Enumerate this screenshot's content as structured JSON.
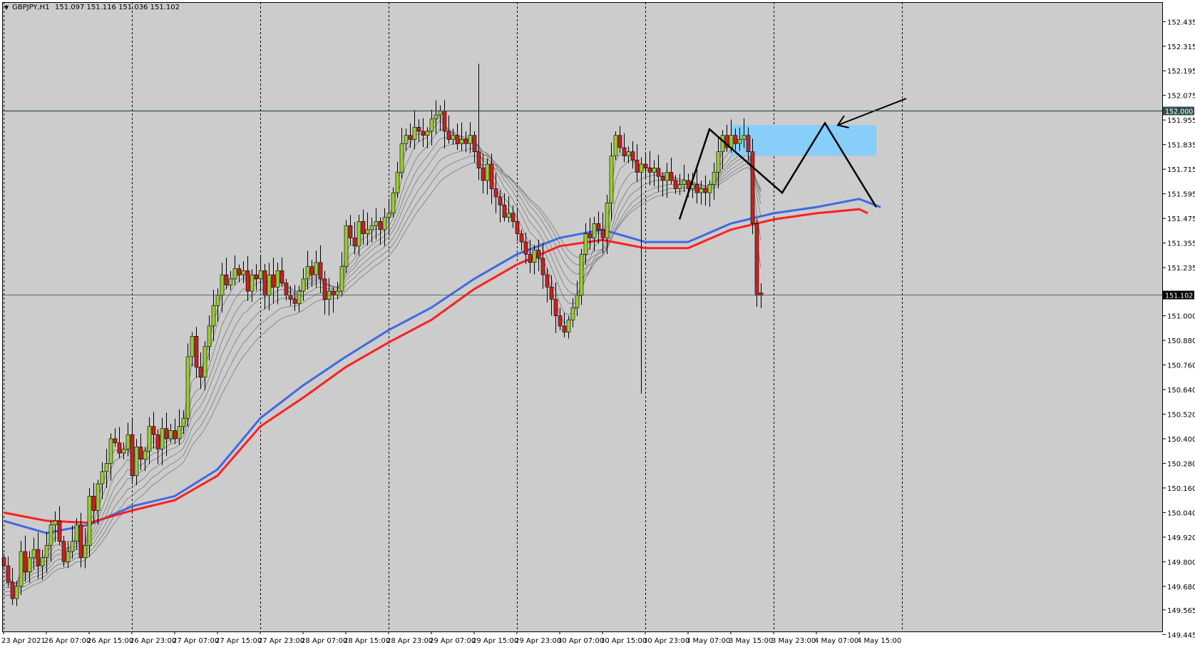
{
  "header": {
    "symbol_timeframe": "GBPJPY,H1",
    "ohlc": "151.097 151.116 151.036 151.102"
  },
  "colors": {
    "background": "#ffffff",
    "plot": "#cccccc",
    "bull": "#99cc33",
    "bear": "#cc2020",
    "wick": "#000000",
    "ema_blue": "#4169e1",
    "ema_red": "#ff2020",
    "ribbon": "#7a7a7a",
    "zone": "#87cefa",
    "hline": "#2f4f4f",
    "grid": "#000000"
  },
  "chart_data": {
    "type": "candlestick",
    "symbol": "GBPJPY",
    "timeframe": "H1",
    "ylim": [
      149.46,
      152.53
    ],
    "y_ticks": [
      "152.435",
      "152.315",
      "152.195",
      "152.075",
      "151.955",
      "151.835",
      "151.715",
      "151.595",
      "151.475",
      "151.355",
      "151.235",
      "151.000",
      "150.880",
      "150.760",
      "150.640",
      "150.520",
      "150.400",
      "150.280",
      "150.160",
      "150.040",
      "149.920",
      "149.800",
      "149.680",
      "149.565",
      "149.445"
    ],
    "x_ticks": [
      {
        "bar": 0,
        "label": "23 Apr 2021"
      },
      {
        "bar": 10,
        "label": "26 Apr 07:00"
      },
      {
        "bar": 20,
        "label": "26 Apr 15:00"
      },
      {
        "bar": 30,
        "label": "26 Apr 23:00"
      },
      {
        "bar": 40,
        "label": "27 Apr 07:00"
      },
      {
        "bar": 50,
        "label": "27 Apr 15:00"
      },
      {
        "bar": 60,
        "label": "27 Apr 23:00"
      },
      {
        "bar": 70,
        "label": "28 Apr 07:00"
      },
      {
        "bar": 80,
        "label": "28 Apr 15:00"
      },
      {
        "bar": 90,
        "label": "28 Apr 23:00"
      },
      {
        "bar": 100,
        "label": "29 Apr 07:00"
      },
      {
        "bar": 110,
        "label": "29 Apr 15:00"
      },
      {
        "bar": 120,
        "label": "29 Apr 23:00"
      },
      {
        "bar": 130,
        "label": "30 Apr 07:00"
      },
      {
        "bar": 140,
        "label": "30 Apr 15:00"
      },
      {
        "bar": 150,
        "label": "30 Apr 23:00"
      },
      {
        "bar": 160,
        "label": "3 May 07:00"
      },
      {
        "bar": 170,
        "label": "3 May 15:00"
      },
      {
        "bar": 180,
        "label": "3 May 23:00"
      },
      {
        "bar": 190,
        "label": "4 May 07:00"
      },
      {
        "bar": 200,
        "label": "4 May 15:00"
      }
    ],
    "vgrid_bars": [
      0,
      30,
      60,
      90,
      120,
      150,
      180,
      210
    ],
    "closes": [
      149.78,
      149.7,
      149.62,
      149.68,
      149.85,
      149.75,
      149.82,
      149.86,
      149.78,
      149.82,
      149.88,
      149.98,
      150.0,
      149.9,
      149.8,
      149.85,
      149.9,
      149.98,
      149.82,
      149.88,
      150.12,
      150.05,
      150.18,
      150.24,
      150.28,
      150.4,
      150.38,
      150.33,
      150.35,
      150.42,
      150.22,
      150.36,
      150.3,
      150.34,
      150.46,
      150.42,
      150.35,
      150.45,
      150.4,
      150.44,
      150.4,
      150.46,
      150.5,
      150.8,
      150.9,
      150.75,
      150.7,
      150.85,
      150.95,
      151.05,
      151.1,
      151.2,
      151.15,
      151.18,
      151.23,
      151.2,
      151.22,
      151.12,
      151.2,
      151.18,
      151.22,
      151.1,
      151.2,
      151.14,
      151.22,
      151.16,
      151.1,
      151.08,
      151.06,
      151.12,
      151.18,
      151.24,
      151.2,
      151.26,
      151.18,
      151.08,
      151.12,
      151.1,
      151.12,
      151.24,
      151.44,
      151.38,
      151.34,
      151.46,
      151.4,
      151.42,
      151.44,
      151.46,
      151.42,
      151.48,
      151.5,
      151.6,
      151.7,
      151.84,
      151.88,
      151.86,
      151.92,
      151.9,
      151.88,
      151.9,
      151.96,
      151.98,
      152.0,
      151.9,
      151.86,
      151.88,
      151.84,
      151.86,
      151.84,
      151.88,
      151.8,
      151.72,
      151.66,
      151.74,
      151.62,
      151.58,
      151.54,
      151.48,
      151.5,
      151.46,
      151.4,
      151.36,
      151.3,
      151.26,
      151.32,
      151.28,
      151.2,
      151.14,
      151.08,
      151.0,
      150.95,
      150.92,
      150.98,
      151.04,
      151.1,
      151.3,
      151.4,
      151.38,
      151.45,
      151.42,
      151.38,
      151.55,
      151.78,
      151.88,
      151.82,
      151.78,
      151.8,
      151.76,
      151.7,
      151.74,
      151.72,
      151.7,
      151.72,
      151.68,
      151.66,
      151.7,
      151.66,
      151.62,
      151.64,
      151.66,
      151.62,
      151.64,
      151.6,
      151.62,
      151.6,
      151.64,
      151.7,
      151.8,
      151.88,
      151.82,
      151.88,
      151.84,
      151.86,
      151.88,
      151.8,
      151.45,
      151.1,
      151.1
    ],
    "ema_blue": [
      [
        0,
        150.0
      ],
      [
        10,
        149.94
      ],
      [
        20,
        149.98
      ],
      [
        30,
        150.07
      ],
      [
        40,
        150.12
      ],
      [
        50,
        150.25
      ],
      [
        60,
        150.5
      ],
      [
        70,
        150.66
      ],
      [
        80,
        150.8
      ],
      [
        90,
        150.93
      ],
      [
        100,
        151.04
      ],
      [
        110,
        151.18
      ],
      [
        120,
        151.3
      ],
      [
        130,
        151.38
      ],
      [
        140,
        151.42
      ],
      [
        150,
        151.36
      ],
      [
        160,
        151.36
      ],
      [
        170,
        151.45
      ],
      [
        180,
        151.5
      ],
      [
        190,
        151.53
      ],
      [
        200,
        151.57
      ],
      [
        205,
        151.53
      ]
    ],
    "ema_red": [
      [
        0,
        150.04
      ],
      [
        10,
        150.0
      ],
      [
        20,
        149.99
      ],
      [
        30,
        150.05
      ],
      [
        40,
        150.1
      ],
      [
        50,
        150.22
      ],
      [
        60,
        150.46
      ],
      [
        70,
        150.6
      ],
      [
        80,
        150.75
      ],
      [
        90,
        150.87
      ],
      [
        100,
        150.98
      ],
      [
        110,
        151.13
      ],
      [
        120,
        151.25
      ],
      [
        130,
        151.34
      ],
      [
        140,
        151.37
      ],
      [
        150,
        151.33
      ],
      [
        160,
        151.33
      ],
      [
        170,
        151.42
      ],
      [
        180,
        151.47
      ],
      [
        190,
        151.5
      ],
      [
        200,
        151.52
      ],
      [
        202,
        151.5
      ]
    ],
    "hlines": [
      {
        "price": 152.0,
        "label": "152.000"
      },
      {
        "price": 151.102,
        "label": "151.102"
      }
    ],
    "zone": {
      "bar_from": 170,
      "bar_to": 204,
      "price_low": 151.78,
      "price_high": 151.93
    },
    "pattern": [
      [
        158,
        151.47
      ],
      [
        165,
        151.91
      ],
      [
        182,
        151.6
      ],
      [
        192,
        151.94
      ],
      [
        204,
        151.53
      ]
    ],
    "arrow": {
      "from": [
        211,
        152.06
      ],
      "to": [
        195,
        151.93
      ]
    }
  }
}
